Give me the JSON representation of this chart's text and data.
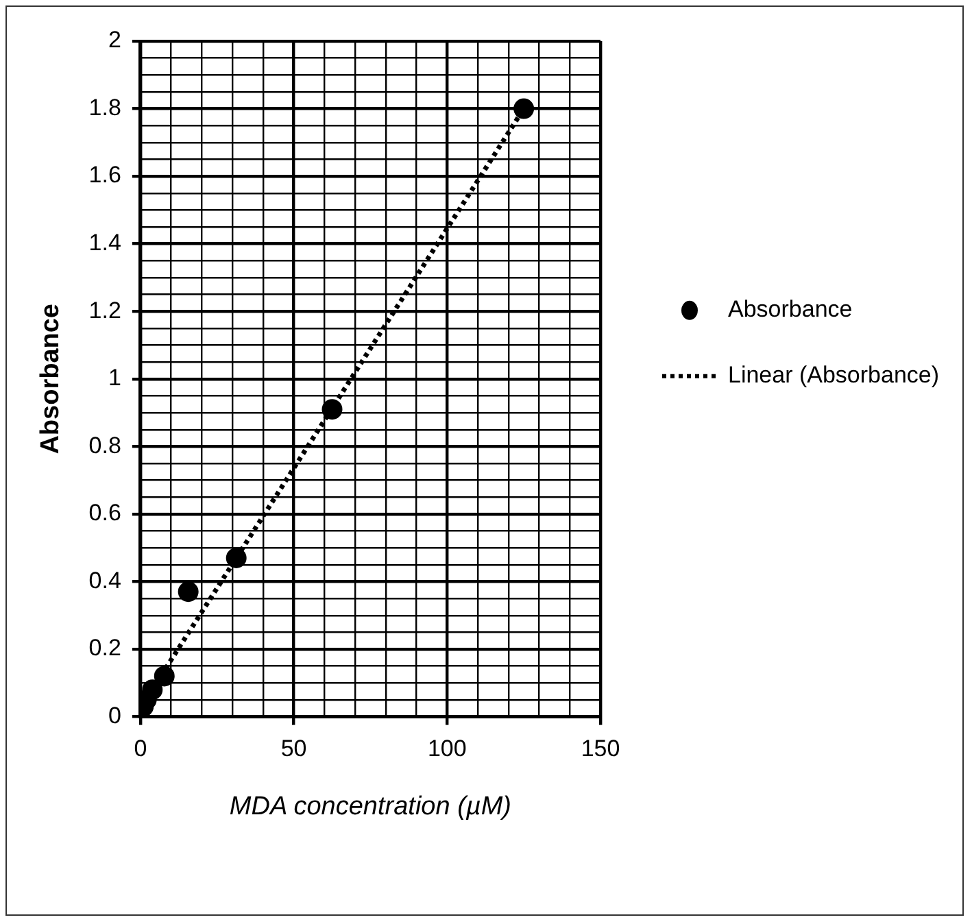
{
  "chart_data": {
    "type": "scatter",
    "xlabel": "MDA concentration (µM)",
    "ylabel": "Absorbance",
    "xlim": [
      0,
      150
    ],
    "ylim": [
      0,
      2
    ],
    "xticks": [
      0,
      {
        "value": 10,
        "label": null
      },
      {
        "value": 20,
        "label": null
      },
      {
        "value": 30,
        "label": null
      },
      {
        "value": 40,
        "label": null
      },
      50,
      {
        "value": 60,
        "label": null
      },
      {
        "value": 70,
        "label": null
      },
      {
        "value": 80,
        "label": null
      },
      {
        "value": 90,
        "label": null
      },
      100,
      {
        "value": 110,
        "label": null
      },
      {
        "value": 120,
        "label": null
      },
      {
        "value": 130,
        "label": null
      },
      {
        "value": 140,
        "label": null
      },
      150
    ],
    "yticks": [
      0,
      {
        "value": 0.05,
        "label": null
      },
      {
        "value": 0.1,
        "label": null
      },
      {
        "value": 0.15,
        "label": null
      },
      0.2,
      {
        "value": 0.25,
        "label": null
      },
      {
        "value": 0.3,
        "label": null
      },
      {
        "value": 0.35,
        "label": null
      },
      0.4,
      {
        "value": 0.45,
        "label": null
      },
      {
        "value": 0.5,
        "label": null
      },
      {
        "value": 0.55,
        "label": null
      },
      0.6,
      {
        "value": 0.65,
        "label": null
      },
      {
        "value": 0.7,
        "label": null
      },
      {
        "value": 0.75,
        "label": null
      },
      0.8,
      {
        "value": 0.85,
        "label": null
      },
      {
        "value": 0.9,
        "label": null
      },
      {
        "value": 0.95,
        "label": null
      },
      1,
      {
        "value": 1.05,
        "label": null
      },
      {
        "value": 1.1,
        "label": null
      },
      {
        "value": 1.15,
        "label": null
      },
      1.2,
      {
        "value": 1.25,
        "label": null
      },
      {
        "value": 1.3,
        "label": null
      },
      {
        "value": 1.35,
        "label": null
      },
      1.4,
      {
        "value": 1.45,
        "label": null
      },
      {
        "value": 1.5,
        "label": null
      },
      {
        "value": 1.55,
        "label": null
      },
      1.6,
      {
        "value": 1.65,
        "label": null
      },
      {
        "value": 1.7,
        "label": null
      },
      {
        "value": 1.75,
        "label": null
      },
      1.8,
      {
        "value": 1.85,
        "label": null
      },
      {
        "value": 1.9,
        "label": null
      },
      {
        "value": 1.95,
        "label": null
      },
      2
    ],
    "grid": true,
    "legend": "right",
    "series": [
      {
        "name": "Absorbance",
        "color": "#000000",
        "marker": "circle",
        "x": [
          0.98,
          1.95,
          3.9,
          7.8,
          15.6,
          31.25,
          62.5,
          125
        ],
        "values": [
          0.03,
          0.05,
          0.08,
          0.12,
          0.37,
          0.47,
          0.91,
          1.8
        ]
      },
      {
        "name": "Linear (Absorbance)",
        "type": "line",
        "color": "#000000",
        "marker": "none",
        "line_style": "dotted",
        "x": [
          0.98,
          125
        ],
        "values": [
          0.04,
          1.8
        ]
      }
    ]
  }
}
